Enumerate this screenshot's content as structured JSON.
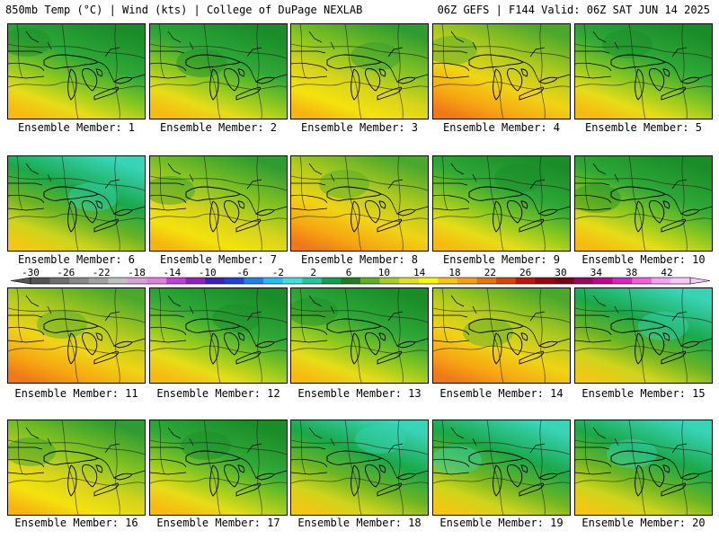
{
  "header": {
    "left": "850mb Temp (°C) | Wind (kts) | College of DuPage NEXLAB",
    "right": "06Z GEFS | F144 Valid: 06Z SAT JUN 14 2025"
  },
  "member_label_prefix": "Ensemble Member:",
  "members": [
    {
      "number": "1",
      "style": "green"
    },
    {
      "number": "2",
      "style": "green"
    },
    {
      "number": "3",
      "style": "yellow"
    },
    {
      "number": "4",
      "style": "orange"
    },
    {
      "number": "5",
      "style": "green"
    },
    {
      "number": "6",
      "style": "teal"
    },
    {
      "number": "7",
      "style": "yellow"
    },
    {
      "number": "8",
      "style": "orange"
    },
    {
      "number": "9",
      "style": "green"
    },
    {
      "number": "10",
      "style": "green"
    },
    {
      "number": "11",
      "style": "orange"
    },
    {
      "number": "12",
      "style": "green"
    },
    {
      "number": "13",
      "style": "green"
    },
    {
      "number": "14",
      "style": "orange"
    },
    {
      "number": "15",
      "style": "teal"
    },
    {
      "number": "16",
      "style": "yellow"
    },
    {
      "number": "17",
      "style": "green"
    },
    {
      "number": "18",
      "style": "teal"
    },
    {
      "number": "19",
      "style": "teal"
    },
    {
      "number": "20",
      "style": "teal"
    }
  ],
  "colorbar": {
    "ticks": [
      "-30",
      "-26",
      "-22",
      "-18",
      "-14",
      "-10",
      "-6",
      "-2",
      "2",
      "6",
      "10",
      "14",
      "18",
      "22",
      "26",
      "30",
      "34",
      "38",
      "42"
    ],
    "colors": [
      "#545454",
      "#6e6e6e",
      "#888888",
      "#a2a2a2",
      "#c0c0c0",
      "#d8a0d8",
      "#e080e0",
      "#c040d8",
      "#9020c8",
      "#4020c0",
      "#2040e0",
      "#2080f0",
      "#20c0f0",
      "#40e0e0",
      "#20c8a0",
      "#10a050",
      "#208020",
      "#60b020",
      "#a8d020",
      "#e0e020",
      "#f8f800",
      "#f8c800",
      "#f8a000",
      "#f07000",
      "#e04000",
      "#c81010",
      "#a00010",
      "#780010",
      "#a00060",
      "#c80090",
      "#e020c0",
      "#f060e0",
      "#f8a0f8",
      "#f8c8f8"
    ]
  },
  "palettes": {
    "green": {
      "top": "#1a8c28",
      "mid": "#2ea836",
      "low": "#8cc81e",
      "bottom": "#e8dc18",
      "warm": "#f7ba10"
    },
    "teal": {
      "top": "#38d4b8",
      "mid": "#1aa848",
      "low": "#6cb422",
      "bottom": "#cfd41c",
      "warm": "#f2c812"
    },
    "yellow": {
      "top": "#2e9c30",
      "mid": "#86c420",
      "low": "#d8d41a",
      "bottom": "#f4e20e",
      "warm": "#f6b410"
    },
    "orange": {
      "top": "#4aa82c",
      "mid": "#b4cc1c",
      "low": "#f0d414",
      "bottom": "#f6a812",
      "warm": "#f07818"
    }
  },
  "map_features": {
    "coast_color": "#000000",
    "contour_color": "#222222"
  }
}
